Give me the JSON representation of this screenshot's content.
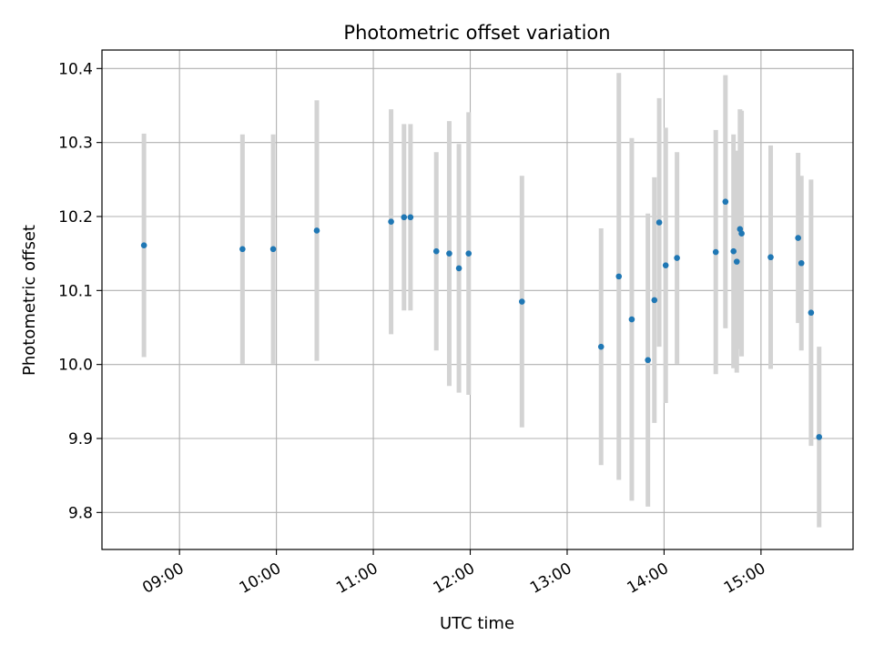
{
  "chart_data": {
    "type": "scatter",
    "title": "Photometric offset variation",
    "xlabel": "UTC time",
    "ylabel": "Photometric offset",
    "xlim": [
      "08:12",
      "15:57"
    ],
    "ylim": [
      9.75,
      10.425
    ],
    "x_ticks": [
      "09:00",
      "10:00",
      "11:00",
      "12:00",
      "13:00",
      "14:00",
      "15:00"
    ],
    "y_ticks": [
      "9.8",
      "9.9",
      "10.0",
      "10.1",
      "10.2",
      "10.3",
      "10.4"
    ],
    "grid": true,
    "colors": {
      "points": "#1f77b4",
      "error_bars": "#d3d3d3",
      "grid": "#b0b0b0"
    },
    "series": [
      {
        "x": [
          "08:38",
          "09:39",
          "09:58",
          "10:25",
          "11:11",
          "11:19",
          "11:23",
          "11:39",
          "11:47",
          "11:53",
          "11:59",
          "12:32",
          "13:21",
          "13:32",
          "13:40",
          "13:50",
          "13:54",
          "13:57",
          "14:01",
          "14:08",
          "14:32",
          "14:38",
          "14:43",
          "14:45",
          "14:47",
          "14:48",
          "15:06",
          "15:23",
          "15:25",
          "15:31",
          "15:36"
        ],
        "y": [
          10.161,
          10.156,
          10.156,
          10.181,
          10.193,
          10.199,
          10.199,
          10.153,
          10.15,
          10.13,
          10.15,
          10.085,
          10.024,
          10.119,
          10.061,
          10.006,
          10.087,
          10.192,
          10.134,
          10.144,
          10.152,
          10.22,
          10.153,
          10.139,
          10.183,
          10.177,
          10.145,
          10.171,
          10.137,
          10.07,
          9.902
        ],
        "yerr": [
          0.151,
          0.155,
          0.155,
          0.176,
          0.152,
          0.126,
          0.126,
          0.134,
          0.179,
          0.168,
          0.191,
          0.17,
          0.16,
          0.275,
          0.245,
          0.198,
          0.166,
          0.168,
          0.186,
          0.143,
          0.165,
          0.171,
          0.158,
          0.15,
          0.162,
          0.166,
          0.151,
          0.115,
          0.118,
          0.18,
          0.122
        ]
      }
    ]
  }
}
